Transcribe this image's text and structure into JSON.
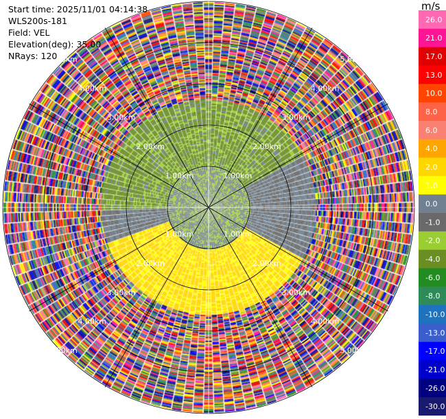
{
  "header": {
    "start_time": "Start time: 2025/11/01 04:14:38",
    "instrument": "WLS200s-181",
    "field": "Field: VEL",
    "elevation": "Elevation(deg): 35.00",
    "nrays": "NRays: 120"
  },
  "chart_data": {
    "type": "heatmap",
    "projection": "polar-ppi",
    "field": "VEL",
    "units": "m/s",
    "nrays": 120,
    "elevation_deg": 35.0,
    "max_range_km": 5.0,
    "range_rings_km": [
      1,
      2,
      3,
      4,
      5
    ],
    "ring_labels": [
      "1.00km",
      "2.00km",
      "3.00km",
      "4.00km",
      "5.00km"
    ],
    "echo_regions": [
      {
        "description": "near-field mixed green echoes",
        "range_km": [
          0.0,
          1.0
        ],
        "azimuth_deg": [
          0,
          360
        ],
        "value_range": [
          -2.0,
          0.0
        ]
      },
      {
        "description": "approaching flow (green)",
        "range_km": [
          1.0,
          2.6
        ],
        "azimuth_deg": [
          270,
          60
        ],
        "value_range": [
          -4.0,
          -1.0
        ]
      },
      {
        "description": "receding flow (yellow)",
        "range_km": [
          1.0,
          2.6
        ],
        "azimuth_deg": [
          120,
          250
        ],
        "value_range": [
          1.0,
          4.0
        ]
      },
      {
        "description": "noise beyond signal",
        "range_km": [
          2.6,
          5.0
        ],
        "azimuth_deg": [
          0,
          360
        ],
        "value_range": [
          -30.0,
          26.0
        ]
      }
    ],
    "colorbar": {
      "label": "m/s",
      "min": -30.0,
      "max": 30.0,
      "tick_labels": [
        "26.0",
        "21.0",
        "17.0",
        "13.0",
        "10.0",
        "8.0",
        "6.0",
        "4.0",
        "2.0",
        "1.0",
        "0.0",
        "-1.0",
        "-2.0",
        "-4.0",
        "-6.0",
        "-8.0",
        "-10.0",
        "-13.0",
        "-17.0",
        "-21.0",
        "-26.0",
        "-30.0"
      ],
      "colors": [
        "#ff69b4",
        "#ff1493",
        "#e00000",
        "#ff0000",
        "#ff4500",
        "#ff6347",
        "#fa8072",
        "#ffa500",
        "#ffd700",
        "#ffff00",
        "#708090",
        "#696969",
        "#9acd32",
        "#6b8e23",
        "#228b22",
        "#2e8b57",
        "#1e73be",
        "#3a5fcd",
        "#0000ff",
        "#0000cd",
        "#000080",
        "#191970"
      ]
    }
  }
}
